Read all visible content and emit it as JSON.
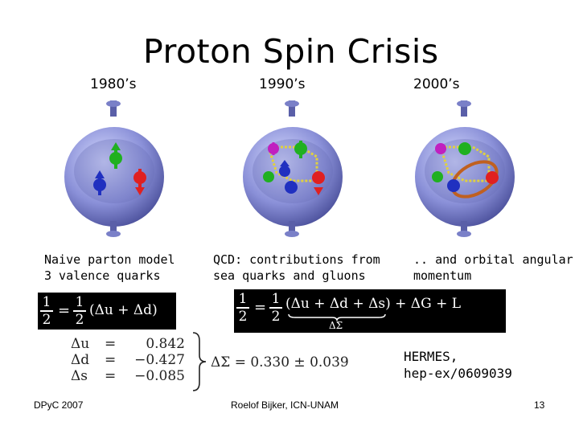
{
  "slide": {
    "title": "Proton Spin Crisis",
    "eras": [
      "1980’s",
      "1990’s",
      "2000’s"
    ],
    "captions": [
      {
        "line1": "Naive parton model",
        "line2": "3 valence quarks"
      },
      {
        "line1": "QCD: contributions from",
        "line2": "sea quarks and gluons"
      },
      {
        "line1": ".. and orbital angular",
        "line2": "momentum"
      }
    ],
    "equation_left": {
      "half": "1",
      "over": "2",
      "rhs": "(Δu + Δd)"
    },
    "equation_right": {
      "half": "1",
      "over": "2",
      "rhs": "(Δu + Δd + Δs) + ΔG + L",
      "underbrace_label": "ΔΣ"
    },
    "measurements": {
      "rows": [
        {
          "symbol": "Δu",
          "eq": "=",
          "value": "0.842"
        },
        {
          "symbol": "Δd",
          "eq": "=",
          "value": "−0.427"
        },
        {
          "symbol": "Δs",
          "eq": "=",
          "value": "−0.085"
        }
      ],
      "result": "ΔΣ = 0.330 ± 0.039"
    },
    "reference": {
      "line1": "HERMES,",
      "line2": "hep-ex/0609039"
    },
    "footer": {
      "left": "DPyC 2007",
      "center": "Roelof Bijker, ICN-UNAM",
      "page": "13"
    },
    "colors": {
      "sphere": "#8a90d8",
      "quark_red": "#e02020",
      "quark_green": "#20b020",
      "quark_blue": "#2030c0",
      "quark_magenta": "#c020c0",
      "gluon": "#e0d040",
      "orbit": "#c06020"
    }
  }
}
